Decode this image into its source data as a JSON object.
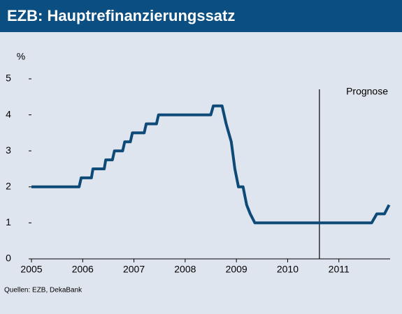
{
  "chart_data": {
    "type": "line",
    "title": "EZB: Hauptrefinanzierungssatz",
    "y_label": "%",
    "source": "Quellen: EZB, DekaBank",
    "annotation": "Prognose",
    "annotation_x": 2010.62,
    "x": [
      2005.0,
      2005.93,
      2005.97,
      2006.17,
      2006.2,
      2006.42,
      2006.45,
      2006.58,
      2006.62,
      2006.78,
      2006.82,
      2006.93,
      2006.97,
      2007.2,
      2007.24,
      2007.44,
      2007.48,
      2008.5,
      2008.55,
      2008.72,
      2008.8,
      2008.9,
      2008.97,
      2009.04,
      2009.13,
      2009.2,
      2009.27,
      2009.36,
      2011.64,
      2011.74,
      2011.89,
      2011.98
    ],
    "series": [
      {
        "color": "#0d4a78",
        "values": [
          2.0,
          2.0,
          2.25,
          2.25,
          2.5,
          2.5,
          2.75,
          2.75,
          3.0,
          3.0,
          3.25,
          3.25,
          3.5,
          3.5,
          3.75,
          3.75,
          4.0,
          4.0,
          4.25,
          4.25,
          3.75,
          3.25,
          2.5,
          2.0,
          2.0,
          1.5,
          1.25,
          1.0,
          1.0,
          1.25,
          1.25,
          1.5
        ]
      }
    ],
    "xlim": [
      2005,
      2012
    ],
    "xticks": [
      2005,
      2006,
      2007,
      2008,
      2009,
      2010,
      2011
    ],
    "ylim": [
      0,
      5
    ],
    "yticks": [
      0,
      1,
      2,
      3,
      4,
      5
    ]
  }
}
